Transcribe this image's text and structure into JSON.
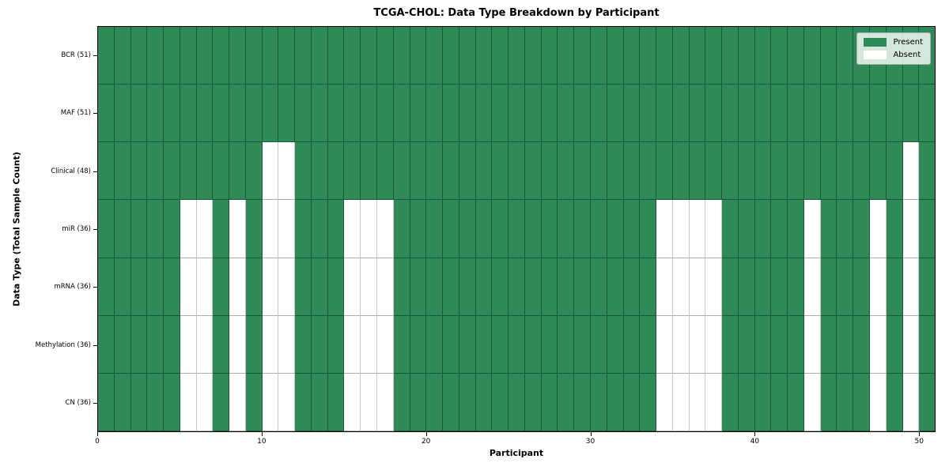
{
  "title": "TCGA-CHOL: Data Type Breakdown by Participant",
  "xlabel": "Participant",
  "ylabel": "Data Type (Total Sample Count)",
  "legend": {
    "present_label": "Present",
    "absent_label": "Absent"
  },
  "colors": {
    "present": "#2e8b57",
    "absent": "#ffffff"
  },
  "chart_data": {
    "type": "heatmap",
    "title": "TCGA-CHOL: Data Type Breakdown by Participant",
    "xlabel": "Participant",
    "ylabel": "Data Type (Total Sample Count)",
    "x_range": [
      0,
      51
    ],
    "x_ticks": [
      0,
      10,
      20,
      30,
      40,
      50
    ],
    "n_participants": 51,
    "legend_entries": [
      "Present",
      "Absent"
    ],
    "legend_position": "upper right",
    "grid": true,
    "rows": [
      {
        "label": "BCR (51)",
        "data_type": "BCR",
        "total": 51,
        "absent_participants": []
      },
      {
        "label": "MAF (51)",
        "data_type": "MAF",
        "total": 51,
        "absent_participants": []
      },
      {
        "label": "Clinical (48)",
        "data_type": "Clinical",
        "total": 48,
        "absent_participants": [
          10,
          11,
          49
        ]
      },
      {
        "label": "miR (36)",
        "data_type": "miR",
        "total": 36,
        "absent_participants": [
          5,
          6,
          8,
          10,
          11,
          15,
          16,
          17,
          34,
          35,
          36,
          37,
          43,
          47,
          49
        ]
      },
      {
        "label": "mRNA (36)",
        "data_type": "mRNA",
        "total": 36,
        "absent_participants": [
          5,
          6,
          8,
          10,
          11,
          15,
          16,
          17,
          34,
          35,
          36,
          37,
          43,
          47,
          49
        ]
      },
      {
        "label": "Methylation (36)",
        "data_type": "Methylation",
        "total": 36,
        "absent_participants": [
          5,
          6,
          8,
          10,
          11,
          15,
          16,
          17,
          34,
          35,
          36,
          37,
          43,
          47,
          49
        ]
      },
      {
        "label": "CN (36)",
        "data_type": "CN",
        "total": 36,
        "absent_participants": [
          5,
          6,
          8,
          10,
          11,
          15,
          16,
          17,
          34,
          35,
          36,
          37,
          43,
          47,
          49
        ]
      }
    ]
  }
}
